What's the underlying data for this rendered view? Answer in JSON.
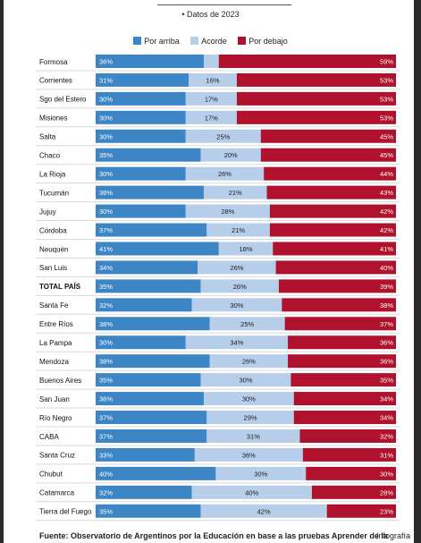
{
  "subtitle": "• Datos de 2023",
  "legend": [
    {
      "label": "Por arriba",
      "color": "#3d86c6"
    },
    {
      "label": "Acorde",
      "color": "#b6cee9"
    },
    {
      "label": "Por debajo",
      "color": "#b0112d"
    }
  ],
  "source": "Fuente: Observatorio de Argentinos por la Educación en base a las pruebas Aprender de la",
  "credit": "Infografía",
  "chart_data": {
    "type": "bar",
    "stacked": true,
    "orientation": "horizontal",
    "categories": [
      "Formosa",
      "Corrientes",
      "Sgo del Estero",
      "Misiones",
      "Salta",
      "Chaco",
      "La Rioja",
      "Tucumán",
      "Jujuy",
      "Córdoba",
      "Neuquén",
      "San Luis",
      "TOTAL PAÍS",
      "Santa Fe",
      "Entre Ríos",
      "La Pampa",
      "Mendoza",
      "Buenos Aires",
      "San Juan",
      "Río Negro",
      "CABA",
      "Santa Cruz",
      "Chubut",
      "Catamarca",
      "Tierra del Fuego"
    ],
    "series": [
      {
        "name": "Por arriba",
        "color": "#3d86c6",
        "values": [
          36,
          31,
          30,
          30,
          30,
          35,
          30,
          36,
          30,
          37,
          41,
          34,
          35,
          32,
          38,
          30,
          38,
          35,
          36,
          37,
          37,
          33,
          40,
          32,
          35
        ]
      },
      {
        "name": "Acorde",
        "color": "#b6cee9",
        "values": [
          5,
          16,
          17,
          17,
          25,
          20,
          26,
          21,
          28,
          21,
          18,
          26,
          26,
          30,
          25,
          34,
          26,
          30,
          30,
          29,
          31,
          36,
          30,
          40,
          42
        ]
      },
      {
        "name": "Por debajo",
        "color": "#b0112d",
        "values": [
          59,
          53,
          53,
          53,
          45,
          45,
          44,
          43,
          42,
          42,
          41,
          40,
          39,
          38,
          37,
          36,
          36,
          35,
          34,
          34,
          32,
          31,
          30,
          28,
          23
        ]
      }
    ],
    "labels": [
      [
        "36%",
        "",
        "59%"
      ],
      [
        "31%",
        "16%",
        "53%"
      ],
      [
        "30%",
        "17%",
        "53%"
      ],
      [
        "30%",
        "17%",
        "53%"
      ],
      [
        "30%",
        "25%",
        "45%"
      ],
      [
        "35%",
        "20%",
        "45%"
      ],
      [
        "30%",
        "26%",
        "44%"
      ],
      [
        "36%",
        "21%",
        "43%"
      ],
      [
        "30%",
        "28%",
        "42%"
      ],
      [
        "37%",
        "21%",
        "42%"
      ],
      [
        "41%",
        "18%",
        "41%"
      ],
      [
        "34%",
        "26%",
        "40%"
      ],
      [
        "35%",
        "26%",
        "39%"
      ],
      [
        "32%",
        "30%",
        "38%"
      ],
      [
        "38%",
        "25%",
        "37%"
      ],
      [
        "30%",
        "34%",
        "36%"
      ],
      [
        "38%",
        "26%",
        "36%"
      ],
      [
        "35%",
        "30%",
        "35%"
      ],
      [
        "36%",
        "30%",
        "34%"
      ],
      [
        "37%",
        "29%",
        "34%"
      ],
      [
        "37%",
        "31%",
        "32%"
      ],
      [
        "33%",
        "36%",
        "31%"
      ],
      [
        "40%",
        "30%",
        "30%"
      ],
      [
        "32%",
        "40%",
        "28%"
      ],
      [
        "35%",
        "42%",
        "23%"
      ]
    ],
    "bold_category": "TOTAL PAÍS",
    "xlim": [
      0,
      100
    ]
  }
}
